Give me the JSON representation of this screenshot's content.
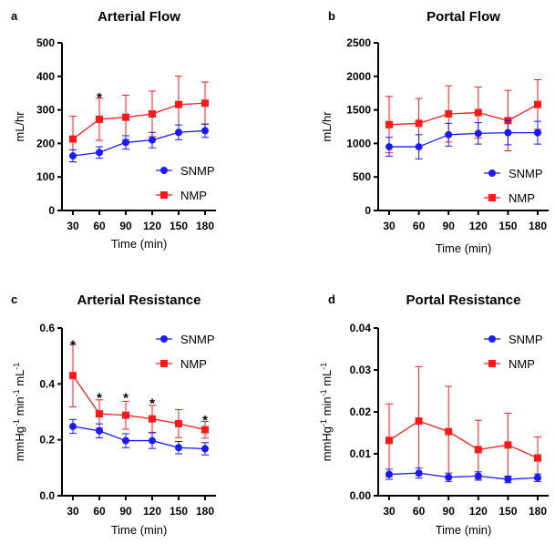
{
  "colors": {
    "SNMP": "#1a1aff",
    "NMP": "#ff1a1a",
    "axis": "#000000"
  },
  "chart_data": [
    {
      "panel": "a",
      "type": "line",
      "title": "Arterial Flow",
      "xlabel": "Time (min)",
      "ylabel": "mL/hr",
      "x": [
        30,
        60,
        90,
        120,
        150,
        180
      ],
      "xticks": [
        "30",
        "60",
        "90",
        "120",
        "150",
        "180"
      ],
      "ylim": [
        0,
        500
      ],
      "yticks": [
        "0",
        "100",
        "200",
        "300",
        "400",
        "500"
      ],
      "ytick_values": [
        0,
        100,
        200,
        300,
        400,
        500
      ],
      "legend": "middle-right",
      "series": [
        {
          "name": "SNMP",
          "marker": "circle",
          "values": [
            163,
            173,
            203,
            210,
            233,
            238
          ],
          "err": [
            18,
            17,
            20,
            23,
            22,
            20
          ]
        },
        {
          "name": "NMP",
          "marker": "square",
          "values": [
            213,
            272,
            278,
            288,
            316,
            320
          ],
          "err": [
            68,
            63,
            66,
            68,
            85,
            63
          ]
        }
      ],
      "annotations": [
        {
          "x": 60,
          "y": 345,
          "text": "*"
        }
      ]
    },
    {
      "panel": "b",
      "type": "line",
      "title": "Portal Flow",
      "xlabel": "Time (min)",
      "ylabel": "mL/hr",
      "x": [
        30,
        60,
        90,
        120,
        150,
        180
      ],
      "xticks": [
        "30",
        "60",
        "90",
        "120",
        "150",
        "180"
      ],
      "ylim": [
        0,
        2500
      ],
      "yticks": [
        "0",
        "500",
        "1000",
        "1500",
        "2000",
        "2500"
      ],
      "ytick_values": [
        0,
        500,
        1000,
        1500,
        2000,
        2500
      ],
      "legend": "bottom-right",
      "series": [
        {
          "name": "SNMP",
          "marker": "circle",
          "values": [
            950,
            950,
            1130,
            1150,
            1160,
            1160
          ],
          "err": [
            140,
            180,
            170,
            160,
            180,
            170
          ]
        },
        {
          "name": "NMP",
          "marker": "square",
          "values": [
            1280,
            1300,
            1440,
            1460,
            1340,
            1580
          ],
          "err": [
            420,
            370,
            420,
            380,
            450,
            370
          ]
        }
      ],
      "annotations": []
    },
    {
      "panel": "c",
      "type": "line",
      "title": "Arterial Resistance",
      "xlabel": "Time (min)",
      "ylabel": "mmHg<sup>-1</sup> min<sup>-1</sup> mL<sup>-1</sup>",
      "ylabel_parts": [
        "mmHg",
        "-1",
        " min",
        "-1",
        " mL",
        "-1"
      ],
      "x": [
        30,
        60,
        90,
        120,
        150,
        180
      ],
      "xticks": [
        "30",
        "60",
        "90",
        "120",
        "150",
        "180"
      ],
      "ylim": [
        0,
        0.6
      ],
      "yticks": [
        "0.0",
        "0.2",
        "0.4",
        "0.6"
      ],
      "ytick_values": [
        0,
        0.2,
        0.4,
        0.6
      ],
      "legend": "top-right",
      "series": [
        {
          "name": "SNMP",
          "marker": "circle",
          "values": [
            0.248,
            0.232,
            0.197,
            0.197,
            0.172,
            0.168
          ],
          "err": [
            0.025,
            0.025,
            0.025,
            0.028,
            0.022,
            0.022
          ]
        },
        {
          "name": "NMP",
          "marker": "square",
          "values": [
            0.43,
            0.293,
            0.288,
            0.275,
            0.258,
            0.236
          ],
          "err": [
            0.112,
            0.05,
            0.05,
            0.048,
            0.05,
            0.03
          ]
        }
      ],
      "annotations": [
        {
          "x": 30,
          "y": 0.55,
          "text": "*"
        },
        {
          "x": 60,
          "y": 0.36,
          "text": "*"
        },
        {
          "x": 90,
          "y": 0.36,
          "text": "*"
        },
        {
          "x": 120,
          "y": 0.34,
          "text": "*"
        },
        {
          "x": 180,
          "y": 0.28,
          "text": "*"
        }
      ]
    },
    {
      "panel": "d",
      "type": "line",
      "title": "Portal Resistance",
      "xlabel": "Time (min)",
      "ylabel": "mmHg<sup>-1</sup> min<sup>-1</sup> mL<sup>-1</sup>",
      "ylabel_parts": [
        "mmHg",
        "-1",
        " min",
        "-1",
        " mL",
        "-1"
      ],
      "x": [
        30,
        60,
        90,
        120,
        150,
        180
      ],
      "xticks": [
        "30",
        "60",
        "90",
        "120",
        "150",
        "180"
      ],
      "ylim": [
        0,
        0.04
      ],
      "yticks": [
        "0.00",
        "0.01",
        "0.02",
        "0.03",
        "0.04"
      ],
      "ytick_values": [
        0,
        0.01,
        0.02,
        0.03,
        0.04
      ],
      "legend": "top-right",
      "series": [
        {
          "name": "SNMP",
          "marker": "circle",
          "values": [
            0.0051,
            0.0054,
            0.0044,
            0.0047,
            0.0039,
            0.0043
          ],
          "err": [
            0.0012,
            0.0012,
            0.001,
            0.001,
            0.0008,
            0.0009
          ]
        },
        {
          "name": "NMP",
          "marker": "square",
          "values": [
            0.0132,
            0.0178,
            0.0153,
            0.011,
            0.0121,
            0.009
          ],
          "err": [
            0.0087,
            0.013,
            0.0108,
            0.007,
            0.0076,
            0.005
          ]
        }
      ],
      "annotations": []
    }
  ]
}
